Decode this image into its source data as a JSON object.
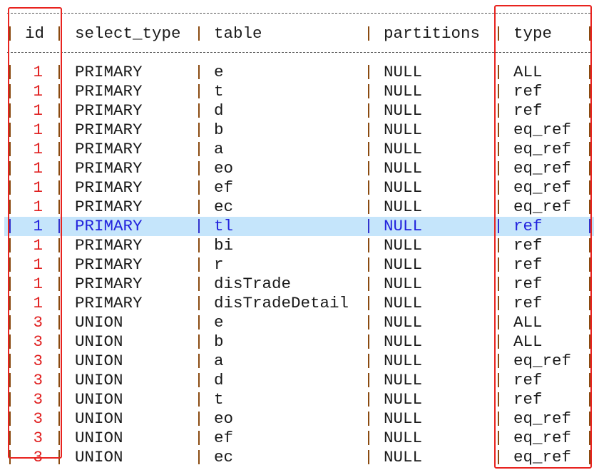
{
  "headers": {
    "id": "id",
    "select_type": "select_type",
    "table": "table",
    "partitions": "partitions",
    "type": "type"
  },
  "rows": [
    {
      "id": "1",
      "select_type": "PRIMARY",
      "table": "e",
      "partitions": "NULL",
      "type": "ALL"
    },
    {
      "id": "1",
      "select_type": "PRIMARY",
      "table": "t",
      "partitions": "NULL",
      "type": "ref"
    },
    {
      "id": "1",
      "select_type": "PRIMARY",
      "table": "d",
      "partitions": "NULL",
      "type": "ref"
    },
    {
      "id": "1",
      "select_type": "PRIMARY",
      "table": "b",
      "partitions": "NULL",
      "type": "eq_ref"
    },
    {
      "id": "1",
      "select_type": "PRIMARY",
      "table": "a",
      "partitions": "NULL",
      "type": "eq_ref"
    },
    {
      "id": "1",
      "select_type": "PRIMARY",
      "table": "eo",
      "partitions": "NULL",
      "type": "eq_ref"
    },
    {
      "id": "1",
      "select_type": "PRIMARY",
      "table": "ef",
      "partitions": "NULL",
      "type": "eq_ref"
    },
    {
      "id": "1",
      "select_type": "PRIMARY",
      "table": "ec",
      "partitions": "NULL",
      "type": "eq_ref"
    },
    {
      "id": "1",
      "select_type": "PRIMARY",
      "table": "tl",
      "partitions": "NULL",
      "type": "ref",
      "selected": true
    },
    {
      "id": "1",
      "select_type": "PRIMARY",
      "table": "bi",
      "partitions": "NULL",
      "type": "ref"
    },
    {
      "id": "1",
      "select_type": "PRIMARY",
      "table": "r",
      "partitions": "NULL",
      "type": "ref"
    },
    {
      "id": "1",
      "select_type": "PRIMARY",
      "table": "disTrade",
      "partitions": "NULL",
      "type": "ref"
    },
    {
      "id": "1",
      "select_type": "PRIMARY",
      "table": "disTradeDetail",
      "partitions": "NULL",
      "type": "ref"
    },
    {
      "id": "3",
      "select_type": "UNION",
      "table": "e",
      "partitions": "NULL",
      "type": "ALL"
    },
    {
      "id": "3",
      "select_type": "UNION",
      "table": "b",
      "partitions": "NULL",
      "type": "ALL"
    },
    {
      "id": "3",
      "select_type": "UNION",
      "table": "a",
      "partitions": "NULL",
      "type": "eq_ref"
    },
    {
      "id": "3",
      "select_type": "UNION",
      "table": "d",
      "partitions": "NULL",
      "type": "ref"
    },
    {
      "id": "3",
      "select_type": "UNION",
      "table": "t",
      "partitions": "NULL",
      "type": "ref"
    },
    {
      "id": "3",
      "select_type": "UNION",
      "table": "eo",
      "partitions": "NULL",
      "type": "eq_ref"
    },
    {
      "id": "3",
      "select_type": "UNION",
      "table": "ef",
      "partitions": "NULL",
      "type": "eq_ref"
    },
    {
      "id": "3",
      "select_type": "UNION",
      "table": "ec",
      "partitions": "NULL",
      "type": "eq_ref"
    }
  ],
  "colors": {
    "highlight_box": "#e8231f",
    "selected_row": "#c5e5fb",
    "id_text": "#e02020",
    "pipe": "#8a4a10"
  }
}
